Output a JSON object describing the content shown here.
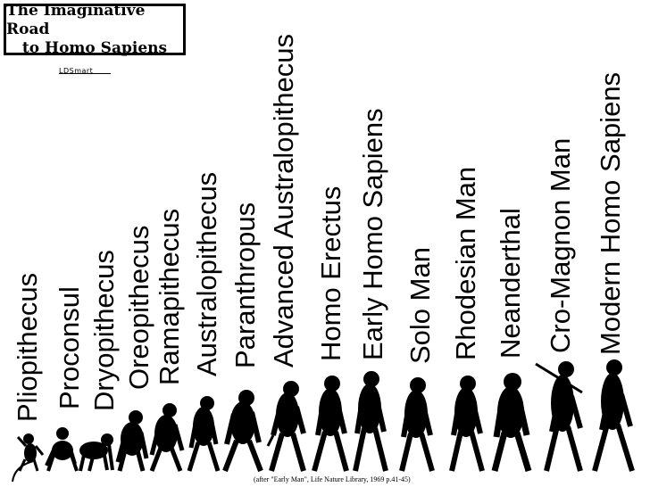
{
  "title": {
    "line1": "The Imaginative Road",
    "line2": "to Homo Sapiens"
  },
  "logo_text": "LDSmart",
  "species": [
    {
      "label": "Pliopithecus"
    },
    {
      "label": "Proconsul"
    },
    {
      "label": "Dryopithecus"
    },
    {
      "label": "Oreopithecus"
    },
    {
      "label": "Ramapithecus"
    },
    {
      "label": "Australopithecus"
    },
    {
      "label": "Paranthropus"
    },
    {
      "label": "Advanced Australopithecus"
    },
    {
      "label": "Homo Erectus"
    },
    {
      "label": "Early Homo Sapiens"
    },
    {
      "label": "Solo Man"
    },
    {
      "label": "Rhodesian Man"
    },
    {
      "label": "Neanderthal"
    },
    {
      "label": "Cro-Magnon Man"
    },
    {
      "label": "Modern Homo Sapiens"
    }
  ],
  "citation": "(after \"Early Man\", Life Nature Library, 1969 p.41-45)",
  "colors": {
    "background": "#ffffff",
    "ink": "#000000"
  }
}
